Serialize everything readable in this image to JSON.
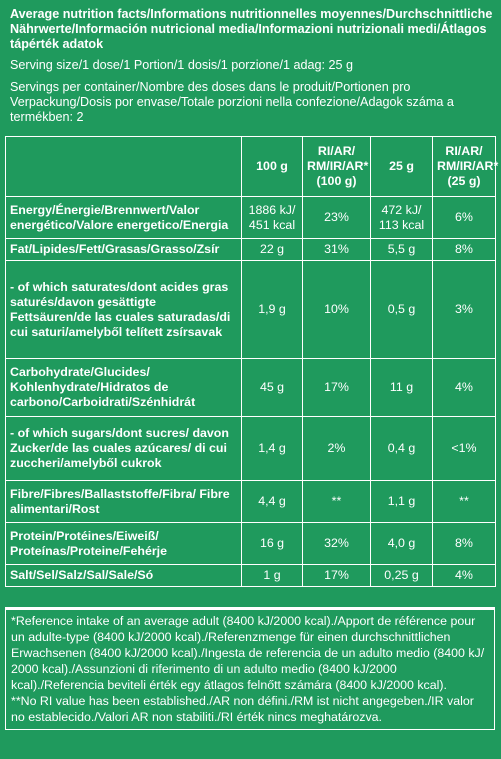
{
  "title": "Average nutrition facts/Informations nutritionnelles moyennes/Durchschnittliche Nährwerte/Información nutricional media/Informazioni nutrizionali medi/Átlagos tápérték adatok",
  "serving_size": "Serving size/1 dose/1 Portion/1 dosis/1 porzione/1 adag: 25 g",
  "servings_per_container": "Servings per container/Nombre des doses dans le produit/Portionen pro Verpackung/Dosis por envase/Totale porzioni nella confezione/Adagok száma a termékben: 2",
  "columns": {
    "per100": "100 g",
    "ri100": "RI/AR/ RM/IR/AR* (100 g)",
    "per25": "25 g",
    "ri25": "RI/AR/ RM/IR/AR* (25 g)"
  },
  "rows": [
    {
      "label": "Energy/Énergie/Brennwert/Valor energético/Valore energetico/Energia",
      "v100": "1886 kJ/ 451 kcal",
      "ri100": "23%",
      "v25": "472 kJ/ 113 kcal",
      "ri25": "6%"
    },
    {
      "label": "Fat/Lipides/Fett/Grasas/Grasso/Zsír",
      "v100": "22 g",
      "ri100": "31%",
      "v25": "5,5 g",
      "ri25": "8%"
    },
    {
      "label": "- of which saturates/dont acides gras saturés/davon gesättigte Fettsäuren/de las cuales saturadas/di cui saturi/amelyből telített zsírsavak",
      "v100": "1,9 g",
      "ri100": "10%",
      "v25": "0,5 g",
      "ri25": "3%"
    },
    {
      "label": "Carbohydrate/Glucides/ Kohlenhydrate/Hidratos de carbono/Carboidrati/Szénhidrát",
      "v100": "45 g",
      "ri100": "17%",
      "v25": "11 g",
      "ri25": "4%"
    },
    {
      "label": "- of which sugars/dont sucres/ davon Zucker/de las cuales azúcares/ di cui zuccheri/amelyből cukrok",
      "v100": "1,4 g",
      "ri100": "2%",
      "v25": "0,4 g",
      "ri25": "<1%"
    },
    {
      "label": "Fibre/Fibres/Ballaststoffe/Fibra/ Fibre alimentari/Rost",
      "v100": "4,4 g",
      "ri100": "**",
      "v25": "1,1 g",
      "ri25": "**"
    },
    {
      "label": "Protein/Protéines/Eiweiß/ Proteínas/Proteine/Fehérje",
      "v100": "16 g",
      "ri100": "32%",
      "v25": "4,0 g",
      "ri25": "8%"
    },
    {
      "label": "Salt/Sel/Salz/Sal/Sale/Só",
      "v100": "1 g",
      "ri100": "17%",
      "v25": "0,25 g",
      "ri25": "4%"
    }
  ],
  "footnote1": "*Reference intake of an average adult (8400 kJ/2000 kcal)./Apport de référence pour un adulte-type (8400 kJ/2000 kcal)./Referenzmenge für einen durchschnittlichen Erwachsenen (8400 kJ/2000 kcal)./Ingesta de referencia de un adulto medio (8400 kJ/ 2000 kcal)./Assunzioni di riferimento di un adulto medio (8400 kJ/2000 kcal)./Referencia beviteli érték egy átlagos felnőtt számára (8400 kJ/2000 kcal).",
  "footnote2": "**No RI value has been established./AR non défini./RM ist nicht angegeben./IR valor no establecido./Valori AR non stabiliti./RI érték nincs meghatározva."
}
